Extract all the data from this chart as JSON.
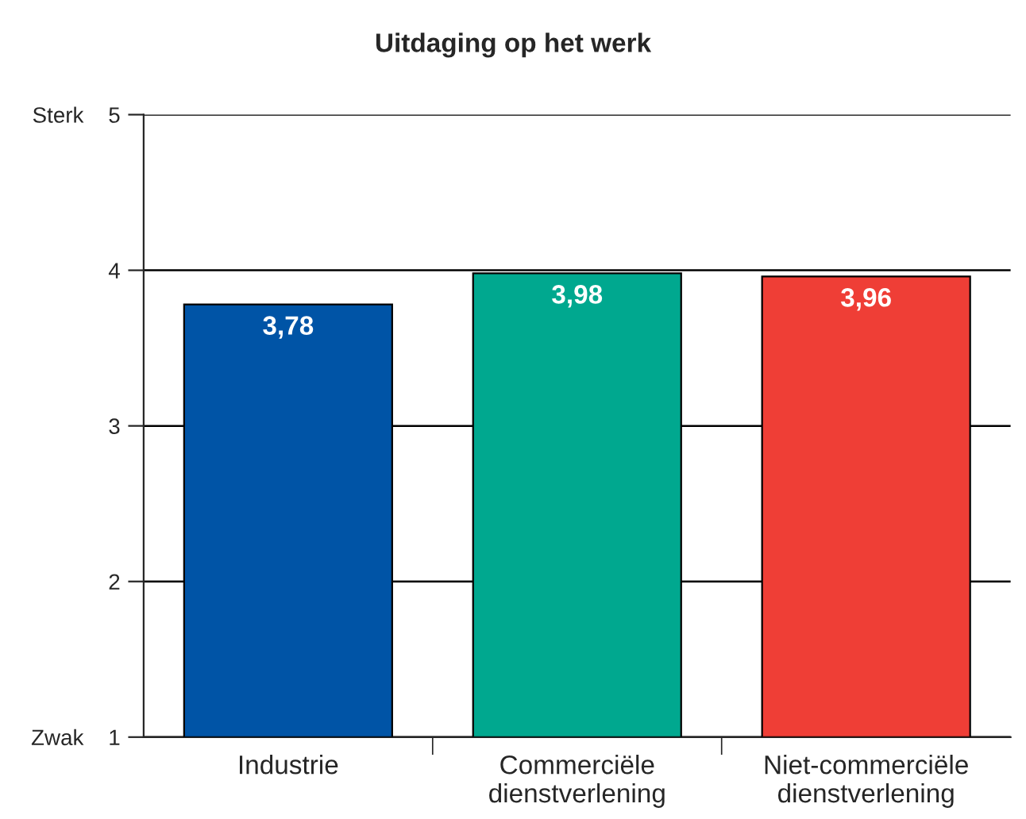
{
  "chart_data": {
    "type": "bar",
    "title": "Uitdaging op het werk",
    "categories": [
      "Industrie",
      "Commerciële\ndienstverlening",
      "Niet-commerciële\ndienstverlening"
    ],
    "values": [
      3.78,
      3.98,
      3.96
    ],
    "colors": [
      "#0054a6",
      "#00a88f",
      "#ef3e36"
    ],
    "value_labels": [
      "3,78",
      "3,98",
      "3,96"
    ],
    "ylim": [
      1,
      5
    ],
    "yticks": [
      {
        "value": 1,
        "label": "Zwak    1"
      },
      2,
      3,
      4,
      {
        "value": 5,
        "label": "Sterk    5"
      }
    ],
    "grid": "y",
    "legend": false
  }
}
